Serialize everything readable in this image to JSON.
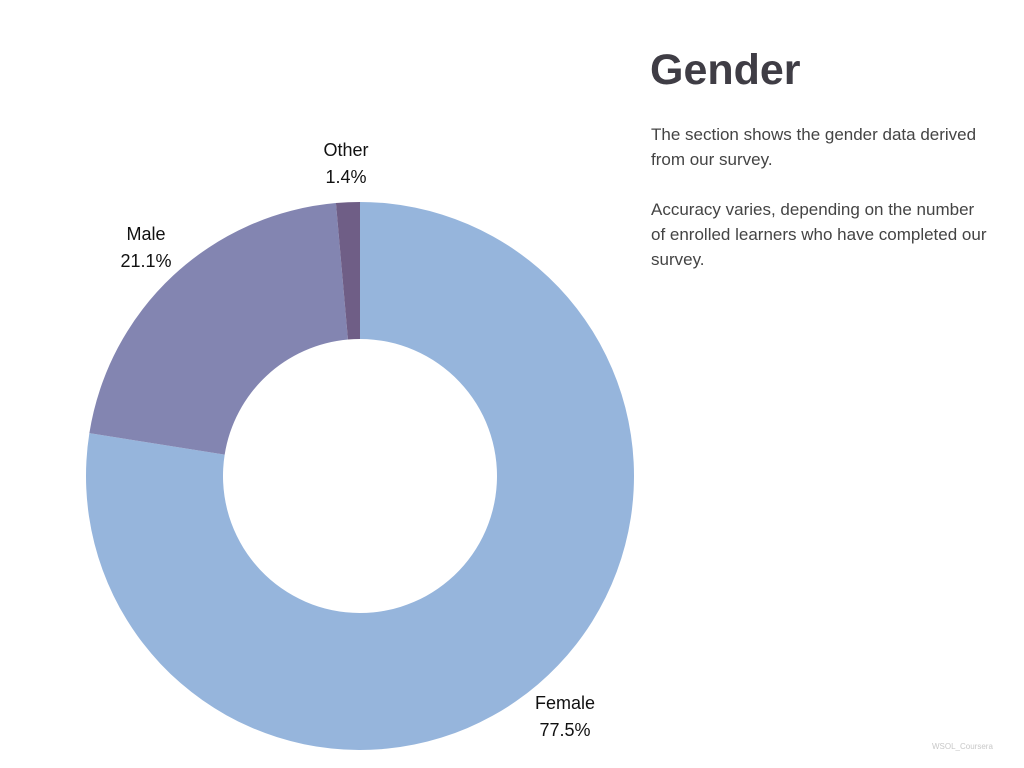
{
  "title": "Gender",
  "description": [
    "The section shows the gender data derived from our survey.",
    "Accuracy varies, depending on the number of enrolled learners who have completed our survey."
  ],
  "watermark": "WSOL_Coursera",
  "chart_data": {
    "type": "pie",
    "donut": true,
    "categories": [
      "Female",
      "Male",
      "Other"
    ],
    "values": [
      77.5,
      21.1,
      1.4
    ],
    "value_labels": [
      "77.5%",
      "21.1%",
      "1.4%"
    ],
    "colors": [
      "#96b5dc",
      "#8385b1",
      "#6f5e86"
    ],
    "title": ""
  }
}
